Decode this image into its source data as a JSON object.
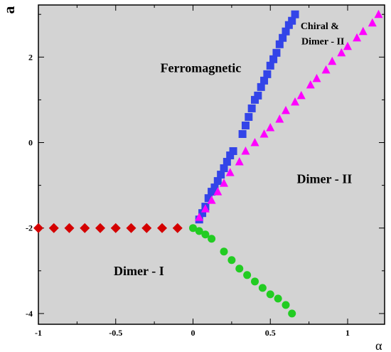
{
  "chart_data": {
    "type": "scatter",
    "xlabel": "α",
    "ylabel": "a",
    "xlim": [
      -1,
      1.25
    ],
    "ylim": [
      -4.2,
      3.2
    ],
    "grid": false,
    "x_ticks": [
      "-1",
      "-0.5",
      "0",
      "0.5",
      "1"
    ],
    "y_ticks": [
      "-4",
      "-2",
      "0",
      "2"
    ],
    "x_tick_values": [
      -1,
      -0.5,
      0,
      0.5,
      1
    ],
    "y_tick_values": [
      -4,
      -2,
      0,
      2
    ],
    "x_minor_tick_values": [
      -0.75,
      -0.25,
      0.25,
      0.75
    ],
    "y_minor_tick_values": [
      -3,
      -1,
      1,
      3
    ],
    "background": "#d3d3d3",
    "annotations": [
      {
        "text": "Ferromagnetic",
        "x": 0.05,
        "y": 1.65,
        "style": "large"
      },
      {
        "text": "Chiral &",
        "x": 0.82,
        "y": 2.65,
        "style": "small"
      },
      {
        "text": "Dimer - II",
        "x": 0.84,
        "y": 2.3,
        "style": "small"
      },
      {
        "text": "Dimer - II",
        "x": 0.85,
        "y": -0.95,
        "style": "large"
      },
      {
        "text": "Dimer - I",
        "x": -0.35,
        "y": -3.1,
        "style": "large"
      }
    ],
    "series": [
      {
        "marker": "diamond",
        "color": "#d40000",
        "x": [
          -1.0,
          -0.9,
          -0.8,
          -0.7,
          -0.6,
          -0.5,
          -0.4,
          -0.3,
          -0.2,
          -0.1
        ],
        "y": [
          -2.0,
          -2.0,
          -2.0,
          -2.0,
          -2.0,
          -2.0,
          -2.0,
          -2.0,
          -2.0,
          -2.0
        ]
      },
      {
        "marker": "circle",
        "color": "#22cc22",
        "x": [
          0.0,
          0.04,
          0.08,
          0.12,
          0.2,
          0.25,
          0.3,
          0.35,
          0.4,
          0.45,
          0.5,
          0.55,
          0.6,
          0.64
        ],
        "y": [
          -2.0,
          -2.07,
          -2.15,
          -2.25,
          -2.55,
          -2.75,
          -2.95,
          -3.1,
          -3.25,
          -3.4,
          -3.55,
          -3.65,
          -3.8,
          -4.0
        ]
      },
      {
        "marker": "square",
        "color": "#3344e8",
        "x": [
          0.04,
          0.06,
          0.08,
          0.1,
          0.12,
          0.14,
          0.16,
          0.18,
          0.2,
          0.22,
          0.24,
          0.26,
          0.32,
          0.34,
          0.36,
          0.38,
          0.4,
          0.42,
          0.44,
          0.46,
          0.48,
          0.5,
          0.52,
          0.54,
          0.56,
          0.58,
          0.6,
          0.62,
          0.64,
          0.66
        ],
        "y": [
          -1.8,
          -1.65,
          -1.5,
          -1.3,
          -1.15,
          -1.05,
          -0.9,
          -0.75,
          -0.6,
          -0.45,
          -0.3,
          -0.2,
          0.2,
          0.4,
          0.6,
          0.8,
          1.0,
          1.1,
          1.3,
          1.45,
          1.6,
          1.8,
          1.95,
          2.1,
          2.3,
          2.45,
          2.6,
          2.75,
          2.85,
          3.0
        ]
      },
      {
        "marker": "triangle",
        "color": "#ff00ff",
        "x": [
          0.04,
          0.08,
          0.12,
          0.16,
          0.2,
          0.24,
          0.3,
          0.34,
          0.4,
          0.46,
          0.5,
          0.56,
          0.6,
          0.66,
          0.7,
          0.76,
          0.8,
          0.86,
          0.9,
          0.96,
          1.0,
          1.06,
          1.1,
          1.16,
          1.2
        ],
        "y": [
          -1.75,
          -1.55,
          -1.35,
          -1.15,
          -0.95,
          -0.7,
          -0.45,
          -0.2,
          0.0,
          0.2,
          0.35,
          0.55,
          0.75,
          0.95,
          1.1,
          1.35,
          1.5,
          1.7,
          1.9,
          2.1,
          2.25,
          2.45,
          2.6,
          2.8,
          3.0
        ]
      }
    ]
  }
}
